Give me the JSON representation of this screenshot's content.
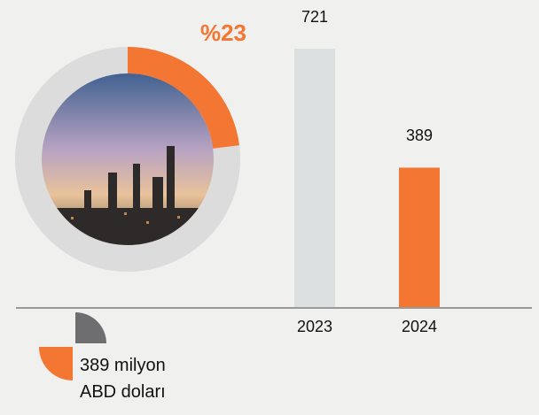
{
  "chart_data": [
    {
      "type": "donut",
      "values": [
        23
      ],
      "value_labels": [
        "%23"
      ],
      "color": "#f37633",
      "track_color": "#dcdcdc"
    },
    {
      "type": "bar",
      "categories": [
        "2023",
        "2024"
      ],
      "values": [
        721,
        389
      ],
      "colors": [
        "#dcdfe0",
        "#f37633"
      ],
      "annotation": "389 milyon ABD doları"
    }
  ]
}
